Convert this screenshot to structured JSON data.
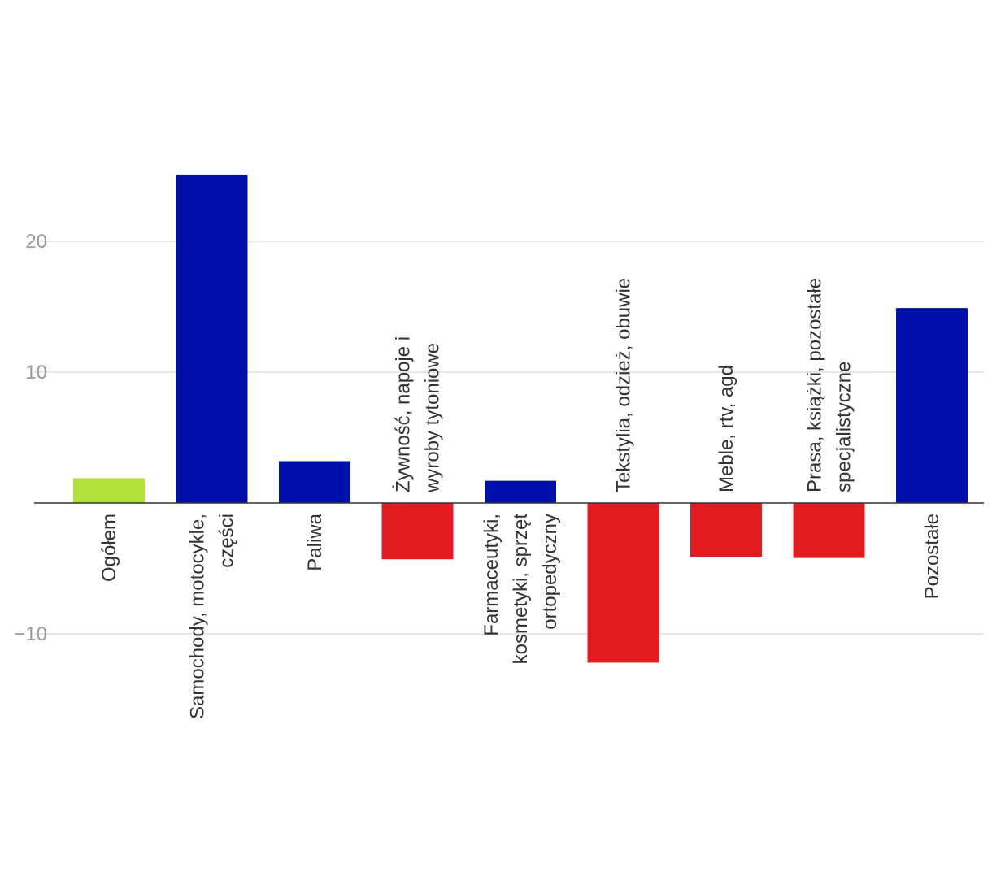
{
  "chart_data": {
    "type": "bar",
    "title": "",
    "xlabel": "",
    "ylabel": "",
    "ylim": [
      -15,
      28
    ],
    "yticks": [
      {
        "value": -10,
        "label": "−10"
      },
      {
        "value": 10,
        "label": "10"
      },
      {
        "value": 20,
        "label": "20"
      }
    ],
    "grid": true,
    "categories": [
      {
        "lines": [
          "Ogółem"
        ]
      },
      {
        "lines": [
          "Samochody, motocykle,",
          "części"
        ]
      },
      {
        "lines": [
          "Paliwa"
        ]
      },
      {
        "lines": [
          "Żywność, napoje i",
          "wyroby tytoniowe"
        ]
      },
      {
        "lines": [
          "Farmaceutyki,",
          "kosmetyki, sprzęt",
          "ortopedyczny"
        ]
      },
      {
        "lines": [
          "Tekstylia, odzież, obuwie"
        ]
      },
      {
        "lines": [
          "Meble, rtv, agd"
        ]
      },
      {
        "lines": [
          "Prasa, książki, pozostałe",
          "specjalistyczne"
        ]
      },
      {
        "lines": [
          "Pozostałe"
        ]
      }
    ],
    "values": [
      1.9,
      25.1,
      3.2,
      -4.3,
      1.7,
      -12.2,
      -4.1,
      -4.2,
      14.9
    ],
    "colors": {
      "total": "#b4e03c",
      "positive": "#0010aa",
      "negative": "#e31b1f"
    }
  }
}
